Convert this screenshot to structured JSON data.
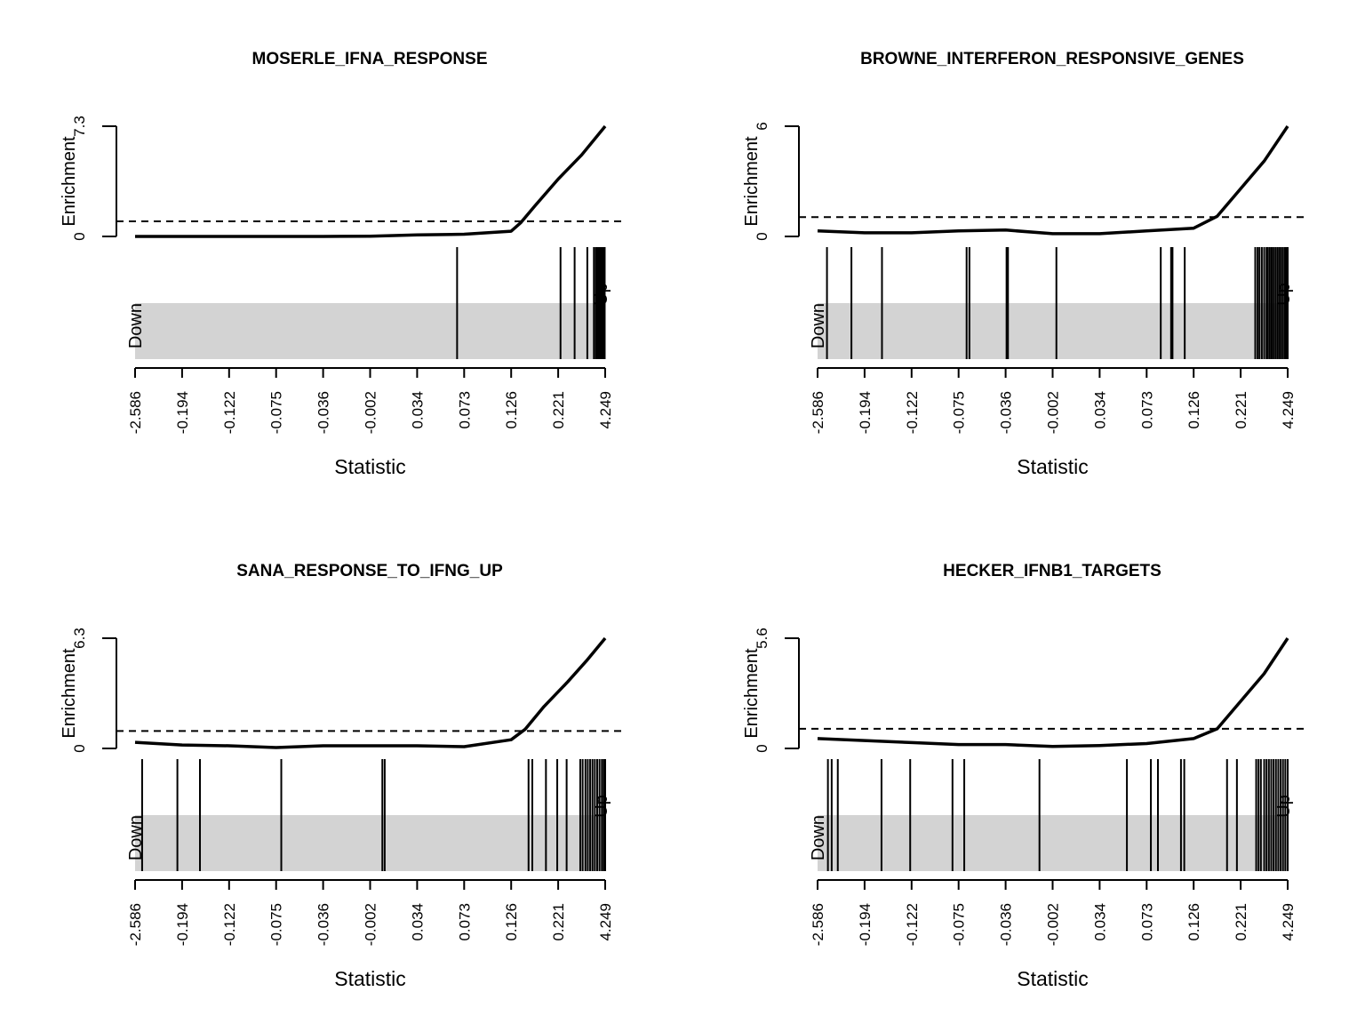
{
  "chart_data": [
    {
      "type": "barcode",
      "title": "MOSERLE_IFNA_RESPONSE",
      "xlabel": "Statistic",
      "ylabel": "Enrichment",
      "x_tick_labels": [
        "-2.586",
        "-0.194",
        "-0.122",
        "-0.075",
        "-0.036",
        "-0.002",
        "0.034",
        "0.073",
        "0.126",
        "0.221",
        "4.249"
      ],
      "y_tick_labels": [
        "0",
        "7.3"
      ],
      "ylim": [
        0,
        7.3
      ],
      "worm_threshold": 1.0,
      "side_labels": {
        "left": "Down",
        "right": "Up"
      },
      "gene_ranks": [
        0.685,
        0.905,
        0.935,
        0.962,
        0.976,
        0.98,
        0.983,
        0.985,
        0.987,
        0.989,
        0.991,
        0.993,
        0.995,
        0.997,
        0.999
      ],
      "enrichment_curve": {
        "x": [
          0.0,
          0.1,
          0.2,
          0.3,
          0.4,
          0.5,
          0.6,
          0.7,
          0.8,
          0.82,
          0.85,
          0.9,
          0.95,
          1.0
        ],
        "y": [
          0.0,
          0.0,
          0.0,
          0.0,
          0.0,
          0.02,
          0.1,
          0.15,
          0.35,
          0.9,
          2.0,
          3.8,
          5.4,
          7.3
        ]
      }
    },
    {
      "type": "barcode",
      "title": "BROWNE_INTERFERON_RESPONSIVE_GENES",
      "xlabel": "Statistic",
      "ylabel": "Enrichment",
      "x_tick_labels": [
        "-2.586",
        "-0.194",
        "-0.122",
        "-0.075",
        "-0.036",
        "-0.002",
        "0.034",
        "0.073",
        "0.126",
        "0.221",
        "4.249"
      ],
      "y_tick_labels": [
        "0",
        "6"
      ],
      "ylim": [
        0,
        6
      ],
      "worm_threshold": 1.05,
      "side_labels": {
        "left": "Down",
        "right": "Up"
      },
      "gene_ranks": [
        0.02,
        0.072,
        0.137,
        0.317,
        0.323,
        0.402,
        0.405,
        0.508,
        0.73,
        0.752,
        0.755,
        0.781,
        0.931,
        0.936,
        0.94,
        0.945,
        0.95,
        0.955,
        0.958,
        0.962,
        0.966,
        0.97,
        0.974,
        0.978,
        0.982,
        0.986,
        0.99,
        0.994,
        0.997,
        1.0
      ],
      "enrichment_curve": {
        "x": [
          0.0,
          0.1,
          0.2,
          0.3,
          0.4,
          0.5,
          0.6,
          0.7,
          0.8,
          0.85,
          0.9,
          0.95,
          1.0
        ],
        "y": [
          0.3,
          0.2,
          0.2,
          0.3,
          0.35,
          0.15,
          0.15,
          0.3,
          0.45,
          1.1,
          2.6,
          4.1,
          6.0
        ]
      }
    },
    {
      "type": "barcode",
      "title": "SANA_RESPONSE_TO_IFNG_UP",
      "xlabel": "Statistic",
      "ylabel": "Enrichment",
      "x_tick_labels": [
        "-2.586",
        "-0.194",
        "-0.122",
        "-0.075",
        "-0.036",
        "-0.002",
        "0.034",
        "0.073",
        "0.126",
        "0.221",
        "4.249"
      ],
      "y_tick_labels": [
        "0",
        "6.3"
      ],
      "ylim": [
        0,
        6.3
      ],
      "worm_threshold": 1.0,
      "side_labels": {
        "left": "Down",
        "right": "Up"
      },
      "gene_ranks": [
        0.015,
        0.09,
        0.138,
        0.311,
        0.526,
        0.531,
        0.837,
        0.845,
        0.874,
        0.898,
        0.918,
        0.947,
        0.952,
        0.958,
        0.963,
        0.968,
        0.973,
        0.978,
        0.983,
        0.988,
        0.993,
        0.997,
        1.0
      ],
      "enrichment_curve": {
        "x": [
          0.0,
          0.1,
          0.2,
          0.3,
          0.4,
          0.5,
          0.6,
          0.7,
          0.8,
          0.83,
          0.87,
          0.92,
          0.96,
          1.0
        ],
        "y": [
          0.35,
          0.2,
          0.15,
          0.05,
          0.15,
          0.15,
          0.15,
          0.1,
          0.5,
          1.1,
          2.4,
          3.8,
          5.0,
          6.3
        ]
      }
    },
    {
      "type": "barcode",
      "title": "HECKER_IFNB1_TARGETS",
      "xlabel": "Statistic",
      "ylabel": "Enrichment",
      "x_tick_labels": [
        "-2.586",
        "-0.194",
        "-0.122",
        "-0.075",
        "-0.036",
        "-0.002",
        "0.034",
        "0.073",
        "0.126",
        "0.221",
        "4.249"
      ],
      "y_tick_labels": [
        "0",
        "5.6"
      ],
      "ylim": [
        0,
        5.6
      ],
      "worm_threshold": 1.0,
      "side_labels": {
        "left": "Down",
        "right": "Up"
      },
      "gene_ranks": [
        0.022,
        0.03,
        0.043,
        0.136,
        0.197,
        0.287,
        0.312,
        0.472,
        0.658,
        0.709,
        0.724,
        0.773,
        0.78,
        0.871,
        0.892,
        0.933,
        0.938,
        0.943,
        0.95,
        0.955,
        0.96,
        0.965,
        0.97,
        0.975,
        0.98,
        0.985,
        0.99,
        0.995,
        1.0
      ],
      "enrichment_curve": {
        "x": [
          0.0,
          0.1,
          0.2,
          0.3,
          0.4,
          0.5,
          0.6,
          0.7,
          0.8,
          0.85,
          0.9,
          0.95,
          1.0
        ],
        "y": [
          0.5,
          0.4,
          0.3,
          0.2,
          0.2,
          0.1,
          0.15,
          0.25,
          0.5,
          1.0,
          2.4,
          3.8,
          5.6
        ]
      }
    }
  ]
}
